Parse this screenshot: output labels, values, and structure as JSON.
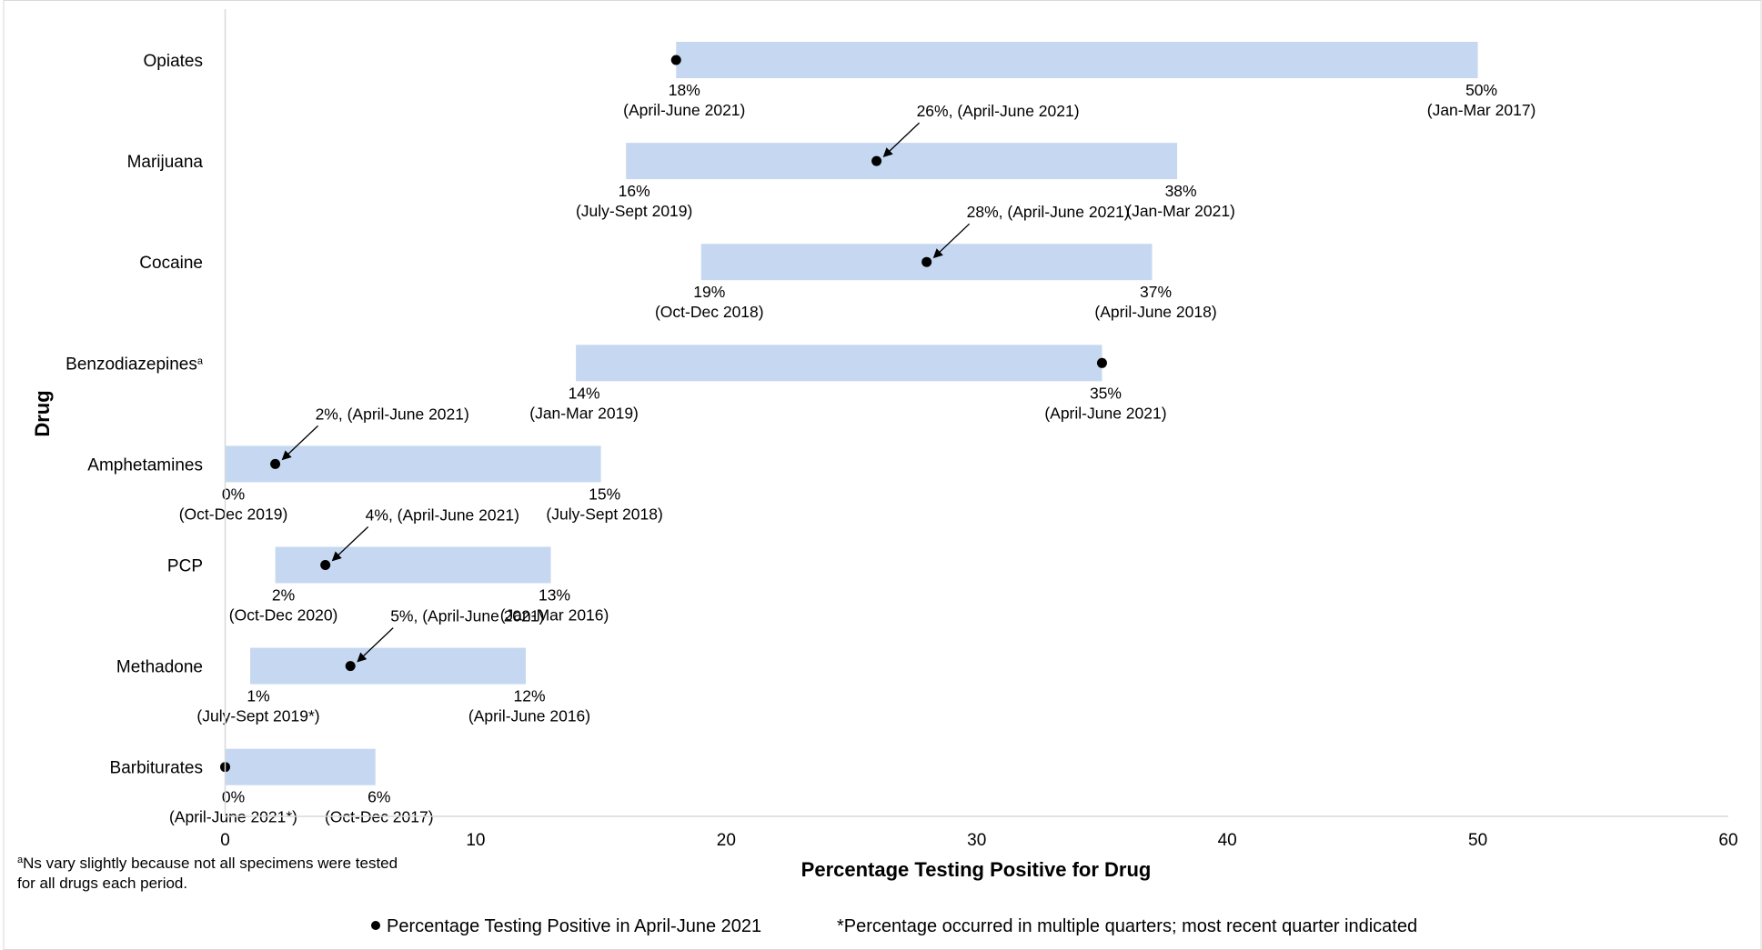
{
  "chart_data": {
    "type": "bar",
    "subtype": "floating-range",
    "title": "",
    "xlabel": "Percentage Testing Positive for Drug",
    "ylabel": "Drug",
    "xlim": [
      0,
      60
    ],
    "xticks": [
      "0",
      "10",
      "20",
      "30",
      "40",
      "50",
      "60"
    ],
    "grid": false,
    "legend_position": "bottom",
    "bar_color": "#c6d8f1",
    "marker_color": "#000000",
    "categories": [
      {
        "name": "Opiates",
        "suffix": "",
        "min": 18,
        "max": 50,
        "current": 18,
        "min_label": "18%",
        "min_period": "(April-June 2021)",
        "max_label": "50%",
        "max_period": "(Jan-Mar 2017)",
        "callout": ""
      },
      {
        "name": "Marijuana",
        "suffix": "",
        "min": 16,
        "max": 38,
        "current": 26,
        "min_label": "16%",
        "min_period": "(July-Sept 2019)",
        "max_label": "38%",
        "max_period": "(Jan-Mar 2021)",
        "callout": "26%, (April-June 2021)"
      },
      {
        "name": "Cocaine",
        "suffix": "",
        "min": 19,
        "max": 37,
        "current": 28,
        "min_label": "19%",
        "min_period": "(Oct-Dec 2018)",
        "max_label": "37%",
        "max_period": "(April-June 2018)",
        "callout": "28%, (April-June 2021)"
      },
      {
        "name": "Benzodiazepines",
        "suffix": "a",
        "min": 14,
        "max": 35,
        "current": 35,
        "min_label": "14%",
        "min_period": "(Jan-Mar 2019)",
        "max_label": "35%",
        "max_period": "(April-June 2021)",
        "callout": ""
      },
      {
        "name": "Amphetamines",
        "suffix": "",
        "min": 0,
        "max": 15,
        "current": 2,
        "min_label": "0%",
        "min_period": "(Oct-Dec 2019)",
        "max_label": "15%",
        "max_period": "(July-Sept 2018)",
        "callout": "2%, (April-June 2021)"
      },
      {
        "name": "PCP",
        "suffix": "",
        "min": 2,
        "max": 13,
        "current": 4,
        "min_label": "2%",
        "min_period": "(Oct-Dec 2020)",
        "max_label": "13%",
        "max_period": "(Jan-Mar 2016)",
        "callout": "4%, (April-June 2021)"
      },
      {
        "name": "Methadone",
        "suffix": "",
        "min": 1,
        "max": 12,
        "current": 5,
        "min_label": "1%",
        "min_period": "(July-Sept 2019*)",
        "max_label": "12%",
        "max_period": "(April-June 2016)",
        "callout": "5%, (April-June 2021)"
      },
      {
        "name": "Barbiturates",
        "suffix": "",
        "min": 0,
        "max": 6,
        "current": 0,
        "min_label": "0%",
        "min_period": "(April-June 2021*)",
        "max_label": "6%",
        "max_period": "(Oct-Dec 2017)",
        "callout": ""
      }
    ],
    "footnote": {
      "marker": "a",
      "lines": [
        "Ns vary slightly because not all specimens were tested",
        "for all drugs each period."
      ]
    },
    "legend": {
      "dot_label": "Percentage Testing Positive in April-June 2021",
      "asterisk_note": "*Percentage occurred in multiple quarters; most recent quarter indicated"
    }
  }
}
